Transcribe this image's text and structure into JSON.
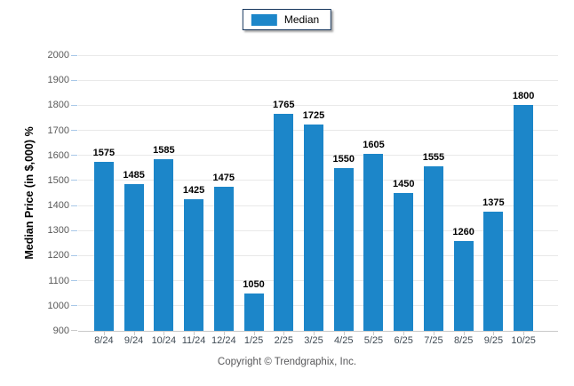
{
  "legend": {
    "items": [
      {
        "label": "Median",
        "color": "#1c86c9"
      }
    ]
  },
  "footer": {
    "copyright": "Copyright © Trendgraphix, Inc."
  },
  "colors": {
    "bar": "#1c86c9",
    "gridline": "#e9e9e9",
    "axis_line": "#c9c9c9",
    "y_tick": "#a8c8e8",
    "y_tick_base": "#c9c9c9",
    "y_label": "#595959",
    "x_label": "#3f4a54",
    "value_label": "#000000",
    "legend_border": "#17375e"
  },
  "chart_data": {
    "type": "bar",
    "title": "",
    "xlabel": "",
    "ylabel": "Median Price (in $,000) %",
    "categories": [
      "8/24",
      "9/24",
      "10/24",
      "11/24",
      "12/24",
      "1/25",
      "2/25",
      "3/25",
      "4/25",
      "5/25",
      "6/25",
      "7/25",
      "8/25",
      "9/25",
      "10/25"
    ],
    "series": [
      {
        "name": "Median",
        "color": "#1c86c9",
        "values": [
          1575,
          1485,
          1585,
          1425,
          1475,
          1050,
          1765,
          1725,
          1550,
          1605,
          1450,
          1555,
          1260,
          1375,
          1800
        ]
      }
    ],
    "ylim": [
      900,
      2000
    ],
    "ytick_step": 100,
    "grid": "horizontal",
    "legend_position": "top-center",
    "value_labels": true
  }
}
